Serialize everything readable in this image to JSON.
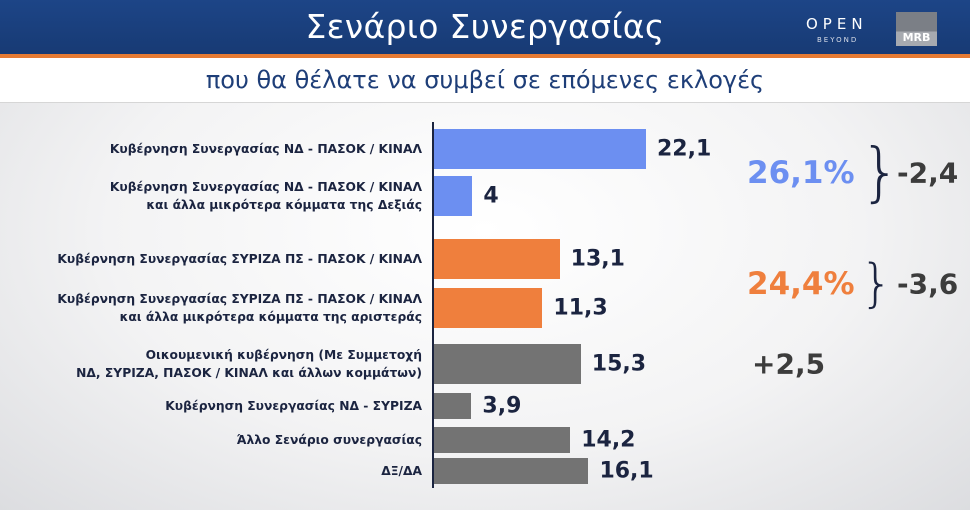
{
  "header": {
    "title": "Σενάριο Συνεργασίας",
    "logo_open": "OPEN",
    "logo_beyond": "BEYOND",
    "logo_mrb": "MRB"
  },
  "subtitle": "που θα θέλατε να συμβεί σε επόμενες εκλογές",
  "colors": {
    "blue": "#6c8ff1",
    "orange": "#ef7f3d",
    "gray": "#737373",
    "header": "#1d4587",
    "accent": "#e57a33"
  },
  "chart_data": {
    "type": "bar",
    "orientation": "horizontal",
    "title": "Σενάριο Συνεργασίας",
    "subtitle": "που θα θέλατε να συμβεί σε επόμενες εκλογές",
    "categories": [
      "Κυβέρνηση Συνεργασίας ΝΔ - ΠΑΣΟΚ / ΚΙΝΑΛ",
      "Κυβέρνηση Συνεργασίας ΝΔ - ΠΑΣΟΚ / ΚΙΝΑΛ\nκαι άλλα μικρότερα κόμματα της Δεξιάς",
      "Κυβέρνηση Συνεργασίας ΣΥΡΙΖΑ ΠΣ - ΠΑΣΟΚ / ΚΙΝΑΛ",
      "Κυβέρνηση Συνεργασίας ΣΥΡΙΖΑ ΠΣ - ΠΑΣΟΚ / ΚΙΝΑΛ\nκαι άλλα μικρότερα κόμματα της αριστεράς",
      "Οικουμενική κυβέρνηση (Με Συμμετοχή\nΝΔ, ΣΥΡΙΖΑ, ΠΑΣΟΚ / ΚΙΝΑΛ και άλλων κομμάτων)",
      "Κυβέρνηση Συνεργασίας ΝΔ - ΣΥΡΙΖΑ",
      "Άλλο Σενάριο συνεργασίας",
      "ΔΞ/ΔΑ"
    ],
    "values": [
      22.1,
      4,
      13.1,
      11.3,
      15.3,
      3.9,
      14.2,
      16.1
    ],
    "value_labels": [
      "22,1",
      "4",
      "13,1",
      "11,3",
      "15,3",
      "3,9",
      "14,2",
      "16,1"
    ],
    "bar_colors": [
      "blue",
      "blue",
      "orange",
      "orange",
      "gray",
      "gray",
      "gray",
      "gray"
    ],
    "xlim": [
      0,
      22.1
    ],
    "grid": false,
    "groups": [
      {
        "total": "26,1%",
        "change": "-2,4",
        "color": "blue",
        "rows": [
          0,
          1
        ]
      },
      {
        "total": "24,4%",
        "change": "-3,6",
        "color": "orange",
        "rows": [
          2,
          3
        ]
      },
      {
        "total": "",
        "change": "+2,5",
        "color": "gray",
        "rows": [
          4
        ]
      }
    ]
  }
}
